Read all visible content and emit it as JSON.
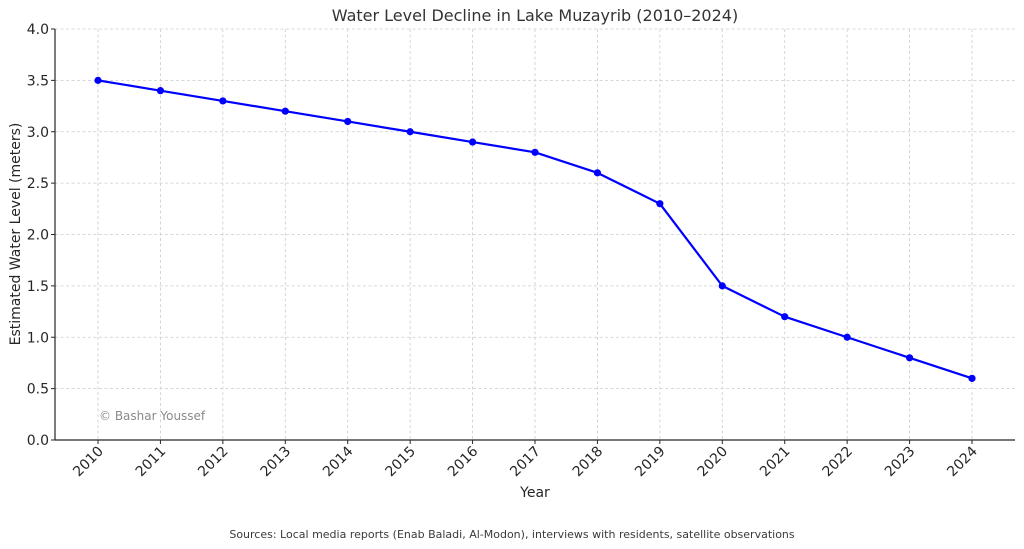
{
  "chart_data": {
    "type": "line",
    "title": "Water Level Decline in Lake Muzayrib (2010–2024)",
    "xlabel": "Year",
    "ylabel": "Estimated Water Level (meters)",
    "categories": [
      "2010",
      "2011",
      "2012",
      "2013",
      "2014",
      "2015",
      "2016",
      "2017",
      "2018",
      "2019",
      "2020",
      "2021",
      "2022",
      "2023",
      "2024"
    ],
    "series": [
      {
        "name": "Water Level",
        "color": "#0000ff",
        "marker": "circle",
        "values": [
          3.5,
          3.4,
          3.3,
          3.2,
          3.1,
          3.0,
          2.9,
          2.8,
          2.6,
          2.3,
          1.5,
          1.2,
          1.0,
          0.8,
          0.6
        ]
      }
    ],
    "ylim": [
      0,
      4.0
    ],
    "yticks": [
      0.0,
      0.5,
      1.0,
      1.5,
      2.0,
      2.5,
      3.0,
      3.5,
      4.0
    ],
    "ytick_labels": [
      "0.0",
      "0.5",
      "1.0",
      "1.5",
      "2.0",
      "2.5",
      "3.0",
      "3.5",
      "4.0"
    ],
    "xtick_rotation_deg": 45,
    "grid": true,
    "legend": "none",
    "annotations": [
      {
        "text": "© Bashar Youssef",
        "placement": "bottom-left inside plot"
      }
    ],
    "footnote": "Sources: Local media reports (Enab Baladi, Al-Modon), interviews with residents, satellite observations"
  }
}
